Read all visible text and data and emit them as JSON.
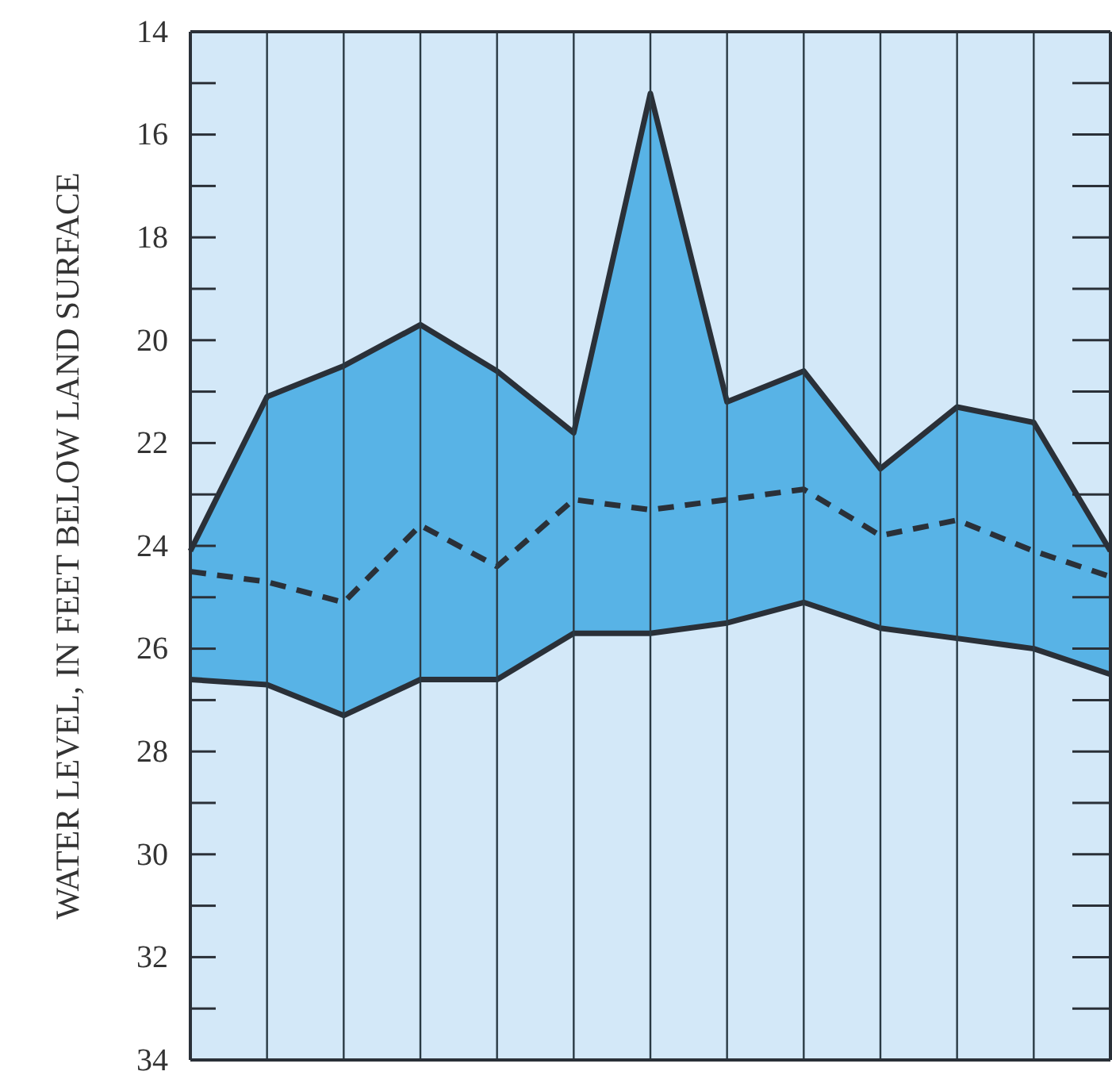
{
  "chart_data": {
    "type": "line",
    "ylabel": "WATER LEVEL, IN FEET BELOW LAND SURFACE",
    "categories": [
      null,
      null,
      null,
      null,
      null,
      null,
      null,
      null,
      null,
      null,
      null,
      null,
      null
    ],
    "series": [
      {
        "color": "#2a3038",
        "line_style": "solid",
        "values": [
          24.1,
          21.1,
          20.5,
          19.7,
          20.6,
          21.8,
          15.2,
          21.2,
          20.6,
          22.5,
          21.3,
          21.6,
          24.1
        ]
      },
      {
        "color": "#2a3038",
        "line_style": "dashed",
        "values": [
          24.5,
          24.7,
          25.1,
          23.6,
          24.4,
          23.1,
          23.3,
          23.1,
          22.9,
          23.8,
          23.5,
          24.1,
          24.6
        ],
        "lower": [
          26.6,
          26.7,
          27.3,
          26.6,
          26.6,
          25.7,
          25.7,
          25.5,
          25.1,
          25.6,
          25.8,
          26.0,
          26.5
        ],
        "upper": [
          24.1,
          21.1,
          20.5,
          19.7,
          20.6,
          21.8,
          15.2,
          21.2,
          20.6,
          22.5,
          21.3,
          21.6,
          24.1
        ]
      },
      {
        "color": "#2a3038",
        "line_style": "solid",
        "values": [
          26.6,
          26.7,
          27.3,
          26.6,
          26.6,
          25.7,
          25.7,
          25.5,
          25.1,
          25.6,
          25.8,
          26.0,
          26.5
        ]
      }
    ],
    "ylim": [
      34,
      14
    ],
    "yticks": [
      14,
      {
        "value": 15,
        "label": null
      },
      16,
      {
        "value": 17,
        "label": null
      },
      18,
      {
        "value": 19,
        "label": null
      },
      20,
      {
        "value": 21,
        "label": null
      },
      22,
      {
        "value": 23,
        "label": null
      },
      24,
      {
        "value": 25,
        "label": null
      },
      26,
      {
        "value": 27,
        "label": null
      },
      28,
      {
        "value": 29,
        "label": null
      },
      30,
      {
        "value": 31,
        "label": null
      },
      32,
      {
        "value": 33,
        "label": null
      },
      34
    ],
    "grid": "x"
  }
}
